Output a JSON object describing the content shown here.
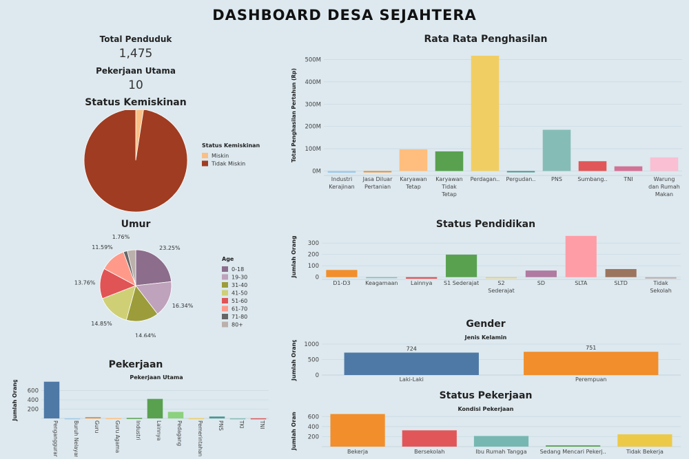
{
  "title": "DASHBOARD DESA SEJAHTERA",
  "kpis": {
    "total_penduduk_label": "Total Penduduk",
    "total_penduduk_value": "1,475",
    "pekerjaan_utama_label": "Pekerjaan Utama",
    "pekerjaan_utama_value": "10"
  },
  "chart_data": [
    {
      "id": "status_kemiskinan",
      "type": "pie",
      "title": "Status Kemiskinan",
      "legend_title": "Status Kemiskinan",
      "slices": [
        {
          "name": "Miskin",
          "value": 2.44,
          "label": "2.44%",
          "color": "#fbbf85"
        },
        {
          "name": "Tidak Miskin",
          "value": 97.56,
          "label": "97.56%",
          "color": "#a03c21"
        }
      ]
    },
    {
      "id": "umur",
      "type": "pie",
      "title": "Umur",
      "legend_title": "Age",
      "slices": [
        {
          "name": "0-18",
          "value": 23.25,
          "label": "23.25%",
          "color": "#8c6d8c"
        },
        {
          "name": "19-30",
          "value": 16.34,
          "label": "16.34%",
          "color": "#bfa2bb"
        },
        {
          "name": "31-40",
          "value": 14.64,
          "label": "14.64%",
          "color": "#9c9c3a"
        },
        {
          "name": "41-50",
          "value": 14.85,
          "label": "14.85%",
          "color": "#cfcf76"
        },
        {
          "name": "51-60",
          "value": 13.76,
          "label": "13.76%",
          "color": "#e05455"
        },
        {
          "name": "61-70",
          "value": 11.59,
          "label": "11.59%",
          "color": "#ff9a8a"
        },
        {
          "name": "71-80",
          "value": 1.76,
          "label": "1.76%",
          "color": "#666666"
        },
        {
          "name": "80+",
          "value": 3.81,
          "label": "",
          "color": "#bbb0ab"
        }
      ]
    },
    {
      "id": "pekerjaan",
      "type": "bar",
      "title": "Pekerjaan",
      "subtitle": "Pekerjaan Utama",
      "ylabel": "Jumlah Orang",
      "ylim": [
        0,
        800
      ],
      "yticks": [
        200,
        400,
        600
      ],
      "categories": [
        "Pengangguran",
        "Buruh Nelayan",
        "Guru",
        "Guru Agama",
        "Industri",
        "Lainnya",
        "Pedagang",
        "Pemerintahan",
        "PNS",
        "TKI",
        "TNI"
      ],
      "values": [
        790,
        2,
        28,
        6,
        10,
        420,
        140,
        4,
        40,
        2,
        2
      ],
      "colors": [
        "#4e79a7",
        "#a0cbe8",
        "#f28e2b",
        "#ffbe7d",
        "#59a14f",
        "#59a14f",
        "#8cd17d",
        "#f1ce63",
        "#499894",
        "#86bcb6",
        "#e15759"
      ]
    },
    {
      "id": "rata_rata_penghasilan",
      "type": "bar",
      "title": "Rata Rata Penghasilan",
      "ylabel": "Total Penghasilan Pertahun (Rp)",
      "ylim": [
        -20,
        520
      ],
      "yticks": [
        0,
        100,
        200,
        300,
        400,
        500
      ],
      "ytick_labels": [
        "0M",
        "100M",
        "200M",
        "300M",
        "400M",
        "500M"
      ],
      "categories": [
        "Industri Kerajinan",
        "Jasa Diluar Pertanian",
        "Karyawan Tetap",
        "Karyawan Tidak Tetap",
        "Perdagan..",
        "Pergudan..",
        "PNS",
        "Sumbang..",
        "TNI",
        "Warung dan Rumah Makan"
      ],
      "category_lines": [
        [
          "Industri",
          "Kerajinan"
        ],
        [
          "Jasa Diluar",
          "Pertanian"
        ],
        [
          "Karyawan",
          "Tetap"
        ],
        [
          "Karyawan",
          "Tidak",
          "Tetap"
        ],
        [
          "Perdagan.."
        ],
        [
          "Pergudan.."
        ],
        [
          "PNS"
        ],
        [
          "Sumbang.."
        ],
        [
          "TNI"
        ],
        [
          "Warung",
          "dan Rumah",
          "Makan"
        ]
      ],
      "values": [
        -8,
        -6,
        97,
        88,
        517,
        -6,
        185,
        44,
        21,
        61
      ],
      "colors": [
        "#a0cbe8",
        "#f28e2b",
        "#ffbe7d",
        "#59a14f",
        "#f1ce63",
        "#499894",
        "#86bcb6",
        "#e15759",
        "#d37295",
        "#fabfd2"
      ]
    },
    {
      "id": "status_pendidikan",
      "type": "bar",
      "title": "Status Pendidikan",
      "ylabel": "Jumlah Orang",
      "ylim": [
        -20,
        380
      ],
      "yticks": [
        0,
        100,
        200,
        300
      ],
      "categories": [
        "D1-D3",
        "Keagamaan",
        "Lainnya",
        "S1 Sederajat",
        "S2 Sederajat",
        "SD",
        "SLTA",
        "SLTD",
        "Tidak Sekolah"
      ],
      "category_lines": [
        [
          "D1-D3"
        ],
        [
          "Keagamaan"
        ],
        [
          "Lainnya"
        ],
        [
          "S1 Sederajat"
        ],
        [
          "S2",
          "Sederajat"
        ],
        [
          "SD"
        ],
        [
          "SLTA"
        ],
        [
          "SLTD"
        ],
        [
          "Tidak",
          "Sekolah"
        ]
      ],
      "values": [
        63,
        -6,
        -14,
        198,
        -10,
        58,
        363,
        71,
        -13
      ],
      "colors": [
        "#f28e2b",
        "#86bcb6",
        "#e15759",
        "#59a14f",
        "#f1ce63",
        "#b07aa1",
        "#ff9da7",
        "#9c755f",
        "#bab0ac"
      ]
    },
    {
      "id": "gender",
      "type": "bar",
      "title": "Gender",
      "subtitle": "Jenis Kelamin",
      "ylabel": "Jumlah Orang",
      "ylim": [
        0,
        1000
      ],
      "yticks": [
        0,
        500,
        1000
      ],
      "categories": [
        "Laki-Laki",
        "Perempuan"
      ],
      "values": [
        724,
        751
      ],
      "data_labels": [
        "724",
        "751"
      ],
      "colors": [
        "#4e79a7",
        "#f28e2b"
      ]
    },
    {
      "id": "status_pekerjaan",
      "type": "bar",
      "title": "Status Pekerjaan",
      "subtitle": "Kondisi Pekerjaan",
      "ylabel": "Jumlah Orang",
      "ylim": [
        0,
        700
      ],
      "yticks": [
        200,
        400,
        600
      ],
      "categories": [
        "Bekerja",
        "Bersekolah",
        "Ibu Rumah Tangga",
        "Sedang Mencari Pekerj..",
        "Tidak Bekerja"
      ],
      "values": [
        650,
        325,
        212,
        25,
        245
      ],
      "colors": [
        "#f28e2b",
        "#e15759",
        "#76b7b2",
        "#59a14f",
        "#edc948"
      ]
    }
  ]
}
